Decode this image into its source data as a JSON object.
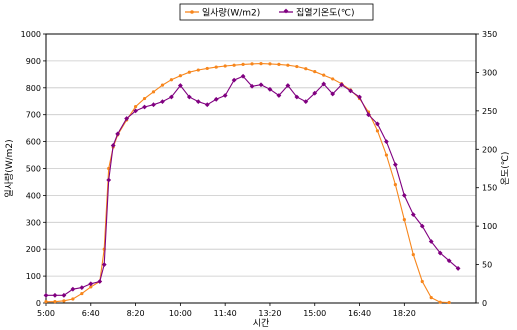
{
  "chart_data": {
    "type": "line",
    "title": "",
    "xlabel": "시간",
    "ylabel_left": "일사량(W/m2)",
    "ylabel_right": "온도(℃)",
    "x_tick_labels": [
      "5:00",
      "6:40",
      "8:20",
      "10:00",
      "11:40",
      "13:20",
      "15:00",
      "16:40",
      "18:20"
    ],
    "x_range_minutes": [
      300,
      1260
    ],
    "y_left_range": [
      0,
      1000
    ],
    "y_left_ticks": [
      0,
      100,
      200,
      300,
      400,
      500,
      600,
      700,
      800,
      900,
      1000
    ],
    "y_right_range": [
      0,
      350
    ],
    "y_right_ticks": [
      0,
      50,
      100,
      150,
      200,
      250,
      300,
      350
    ],
    "grid": "horizontal",
    "legend_position": "top",
    "series": [
      {
        "name": "일사량(W/m2)",
        "axis": "left",
        "color": "#f7861c",
        "marker": "dot",
        "points": [
          [
            "5:00",
            5
          ],
          [
            "5:20",
            5
          ],
          [
            "5:40",
            8
          ],
          [
            "6:00",
            15
          ],
          [
            "6:20",
            35
          ],
          [
            "6:40",
            60
          ],
          [
            "7:00",
            80
          ],
          [
            "7:10",
            200
          ],
          [
            "7:20",
            500
          ],
          [
            "7:30",
            580
          ],
          [
            "7:40",
            625
          ],
          [
            "8:00",
            680
          ],
          [
            "8:20",
            730
          ],
          [
            "8:40",
            760
          ],
          [
            "9:00",
            785
          ],
          [
            "9:20",
            810
          ],
          [
            "9:40",
            830
          ],
          [
            "10:00",
            845
          ],
          [
            "10:20",
            858
          ],
          [
            "10:40",
            866
          ],
          [
            "11:00",
            872
          ],
          [
            "11:20",
            877
          ],
          [
            "11:40",
            881
          ],
          [
            "12:00",
            884
          ],
          [
            "12:20",
            887
          ],
          [
            "12:40",
            889
          ],
          [
            "13:00",
            890
          ],
          [
            "13:20",
            889
          ],
          [
            "13:40",
            887
          ],
          [
            "14:00",
            884
          ],
          [
            "14:20",
            879
          ],
          [
            "14:40",
            871
          ],
          [
            "15:00",
            860
          ],
          [
            "15:20",
            847
          ],
          [
            "15:40",
            833
          ],
          [
            "16:00",
            815
          ],
          [
            "16:20",
            792
          ],
          [
            "16:40",
            760
          ],
          [
            "17:00",
            710
          ],
          [
            "17:20",
            640
          ],
          [
            "17:40",
            550
          ],
          [
            "18:00",
            440
          ],
          [
            "18:20",
            310
          ],
          [
            "18:40",
            180
          ],
          [
            "19:00",
            80
          ],
          [
            "19:20",
            20
          ],
          [
            "19:40",
            3
          ],
          [
            "20:00",
            2
          ]
        ]
      },
      {
        "name": "집열기온도(℃)",
        "axis": "right",
        "color": "#800080",
        "marker": "diamond",
        "points": [
          [
            "5:00",
            10
          ],
          [
            "5:20",
            10
          ],
          [
            "5:40",
            10
          ],
          [
            "6:00",
            18
          ],
          [
            "6:20",
            20
          ],
          [
            "6:40",
            25
          ],
          [
            "7:00",
            28
          ],
          [
            "7:10",
            50
          ],
          [
            "7:20",
            160
          ],
          [
            "7:30",
            205
          ],
          [
            "7:40",
            220
          ],
          [
            "8:00",
            240
          ],
          [
            "8:20",
            250
          ],
          [
            "8:40",
            255
          ],
          [
            "9:00",
            258
          ],
          [
            "9:20",
            262
          ],
          [
            "9:40",
            268
          ],
          [
            "10:00",
            283
          ],
          [
            "10:20",
            268
          ],
          [
            "10:40",
            262
          ],
          [
            "11:00",
            258
          ],
          [
            "11:20",
            265
          ],
          [
            "11:40",
            270
          ],
          [
            "12:00",
            290
          ],
          [
            "12:20",
            295
          ],
          [
            "12:40",
            282
          ],
          [
            "13:00",
            284
          ],
          [
            "13:20",
            278
          ],
          [
            "13:40",
            270
          ],
          [
            "14:00",
            283
          ],
          [
            "14:20",
            268
          ],
          [
            "14:40",
            262
          ],
          [
            "15:00",
            273
          ],
          [
            "15:20",
            285
          ],
          [
            "15:40",
            272
          ],
          [
            "16:00",
            284
          ],
          [
            "16:20",
            276
          ],
          [
            "16:40",
            268
          ],
          [
            "17:00",
            245
          ],
          [
            "17:20",
            233
          ],
          [
            "17:40",
            210
          ],
          [
            "18:00",
            180
          ],
          [
            "18:20",
            140
          ],
          [
            "18:40",
            115
          ],
          [
            "19:00",
            100
          ],
          [
            "19:20",
            80
          ],
          [
            "19:40",
            65
          ],
          [
            "20:00",
            55
          ],
          [
            "20:20",
            45
          ]
        ]
      }
    ]
  }
}
